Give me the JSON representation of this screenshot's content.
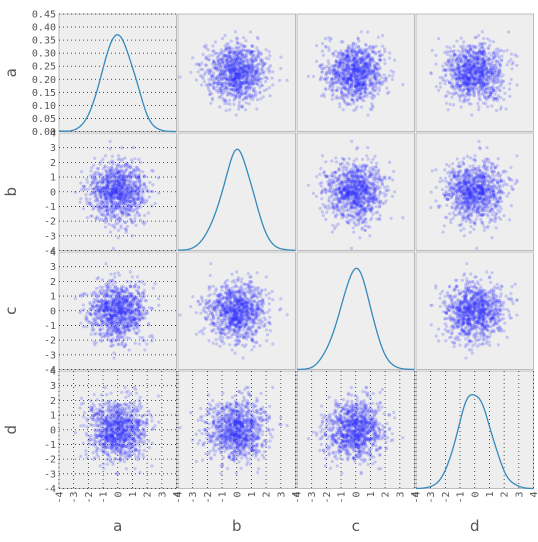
{
  "chart_data": {
    "type": "scatter_matrix",
    "variables": [
      "a",
      "b",
      "c",
      "d"
    ],
    "diagonal": "kde",
    "point_count_approx": 1000,
    "distributions": {
      "a": {
        "mean": 0.0,
        "std": 1.0
      },
      "b": {
        "mean": 0.0,
        "std": 1.0
      },
      "c": {
        "mean": 0.0,
        "std": 1.0
      },
      "d": {
        "mean": 0.0,
        "std": 1.0
      }
    },
    "axis_ranges": {
      "a": [
        -4,
        4
      ],
      "b": [
        -4,
        4
      ],
      "c": [
        -4,
        4
      ],
      "d": [
        -4,
        4
      ]
    },
    "kde_ylim": [
      0.0,
      0.45
    ],
    "kde_yticks": [
      "0.45",
      "0.40",
      "0.35",
      "0.30",
      "0.25",
      "0.20",
      "0.15",
      "0.10",
      "0.05",
      "0.00"
    ],
    "ticks": [
      "-4",
      "-3",
      "-2",
      "-1",
      "0",
      "1",
      "2",
      "3",
      "4"
    ],
    "y_ticks_shown": [
      "3",
      "2",
      "1",
      "0",
      "-1",
      "-2",
      "-3",
      "-4"
    ],
    "colors": {
      "panel_bg": "#eeeeee",
      "panel_border": "#bcbcbc",
      "points": "#3333ff",
      "kde_line": "#348abd",
      "grid": "#222222",
      "text": "#555555"
    }
  }
}
